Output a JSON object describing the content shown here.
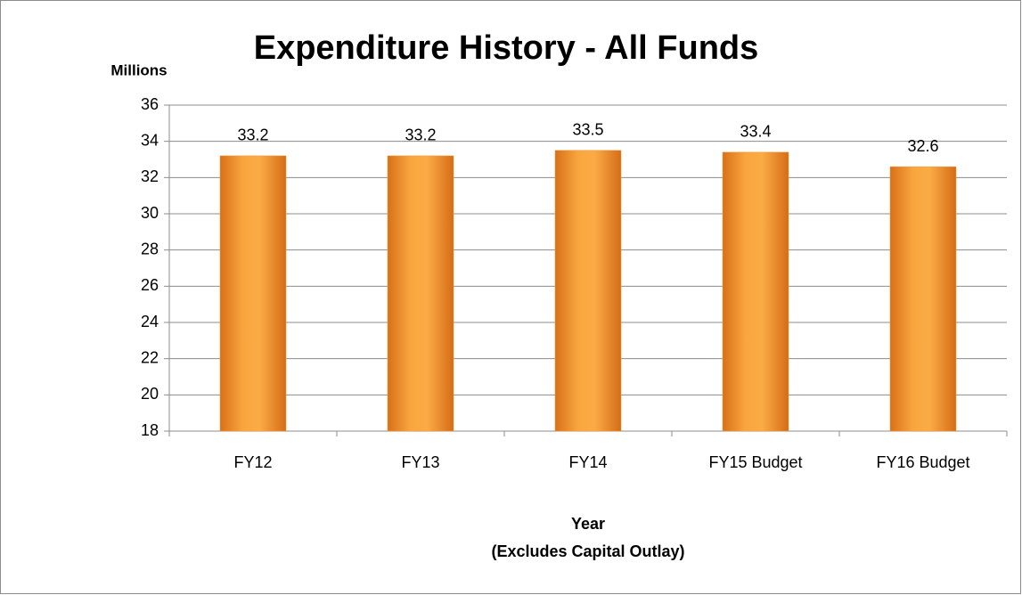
{
  "chart_data": {
    "type": "bar",
    "title": "Expenditure History - All Funds",
    "ylabel": "Millions",
    "xlabel": [
      "Year",
      "(Excludes Capital Outlay)"
    ],
    "categories": [
      "FY12",
      "FY13",
      "FY14",
      "FY15 Budget",
      "FY16 Budget"
    ],
    "values": [
      33.2,
      33.2,
      33.5,
      33.4,
      32.6
    ],
    "color": "#f59a33",
    "ylim": [
      18,
      36
    ],
    "yticks": [
      18,
      20,
      22,
      24,
      26,
      28,
      30,
      32,
      34,
      36
    ],
    "grid": true
  }
}
